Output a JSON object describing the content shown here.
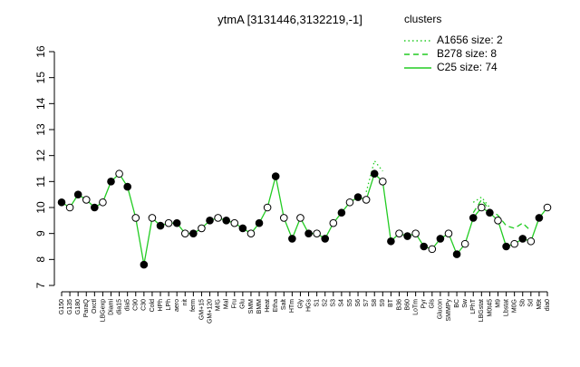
{
  "chart_data": {
    "type": "line",
    "title": "ytmA [3131446,3132219,-1]",
    "legend_title": "clusters",
    "categories": [
      "G150",
      "G135",
      "G180",
      "ParaQ",
      "Oxctl",
      "LBGexp",
      "Diami",
      "dia15",
      "dia5",
      "C90",
      "C30",
      "Cold",
      "HPh",
      "LPh",
      "aero",
      "nit",
      "ferm",
      "GM+15",
      "GM+120",
      "M/G",
      "Mal",
      "Fru",
      "Glu",
      "SMM",
      "BMM",
      "Heat",
      "Etha",
      "Salt",
      "HTm",
      "Gly",
      "HGs",
      "S1",
      "S2",
      "S3",
      "S4",
      "S5",
      "S6",
      "S7",
      "S8",
      "S9",
      "BT",
      "B36",
      "B60",
      "LoTm",
      "Pyr",
      "Gls",
      "Glucon",
      "SMMPy",
      "BC",
      "Sw",
      "LPhT",
      "LBGstat",
      "M0t45",
      "M9",
      "Lbstat",
      "M0G",
      "Sb",
      "Sd",
      "M9t",
      "dia0"
    ],
    "series": [
      {
        "name": "A1656 size: 2",
        "color": "#22cc22",
        "dash": "dotted",
        "values": [
          null,
          null,
          null,
          null,
          null,
          null,
          null,
          null,
          null,
          null,
          null,
          null,
          null,
          null,
          null,
          null,
          null,
          null,
          null,
          null,
          null,
          null,
          null,
          null,
          null,
          null,
          null,
          null,
          null,
          null,
          null,
          null,
          null,
          null,
          null,
          null,
          null,
          10.6,
          11.8,
          11.4,
          null,
          null,
          null,
          null,
          null,
          null,
          null,
          null,
          null,
          null,
          10.2,
          10.4,
          10.0,
          null,
          null,
          null,
          null,
          null,
          null,
          null
        ]
      },
      {
        "name": "B278 size: 8",
        "color": "#22cc22",
        "dash": "dashed",
        "values": [
          null,
          null,
          null,
          null,
          null,
          null,
          null,
          null,
          null,
          null,
          null,
          null,
          null,
          null,
          null,
          null,
          null,
          null,
          null,
          null,
          null,
          null,
          null,
          null,
          null,
          null,
          null,
          null,
          null,
          null,
          null,
          null,
          null,
          null,
          null,
          null,
          null,
          null,
          null,
          null,
          null,
          null,
          null,
          null,
          null,
          null,
          null,
          null,
          null,
          null,
          9.8,
          10.3,
          9.9,
          9.7,
          9.3,
          9.2,
          9.4,
          9.1,
          null,
          null
        ]
      },
      {
        "name": "C25 size: 74",
        "color": "#22cc22",
        "dash": "solid",
        "values": [
          10.2,
          10.0,
          10.5,
          10.3,
          10.0,
          10.2,
          11.0,
          11.3,
          10.8,
          9.6,
          7.8,
          9.6,
          9.3,
          9.4,
          9.4,
          9.0,
          9.0,
          9.2,
          9.5,
          9.6,
          9.5,
          9.4,
          9.2,
          9.0,
          9.4,
          10.0,
          11.2,
          9.6,
          8.8,
          9.6,
          9.0,
          9.0,
          8.8,
          9.4,
          9.8,
          10.2,
          10.4,
          10.3,
          11.3,
          11.0,
          8.7,
          9.0,
          8.9,
          9.0,
          8.5,
          8.4,
          8.8,
          9.0,
          8.2,
          8.6,
          9.6,
          10.0,
          9.8,
          9.5,
          8.5,
          8.6,
          8.8,
          8.7,
          9.6,
          10.0
        ]
      }
    ],
    "ylim": [
      7,
      16
    ],
    "yticks": [
      7,
      8,
      9,
      10,
      11,
      12,
      13,
      14,
      15,
      16
    ]
  }
}
